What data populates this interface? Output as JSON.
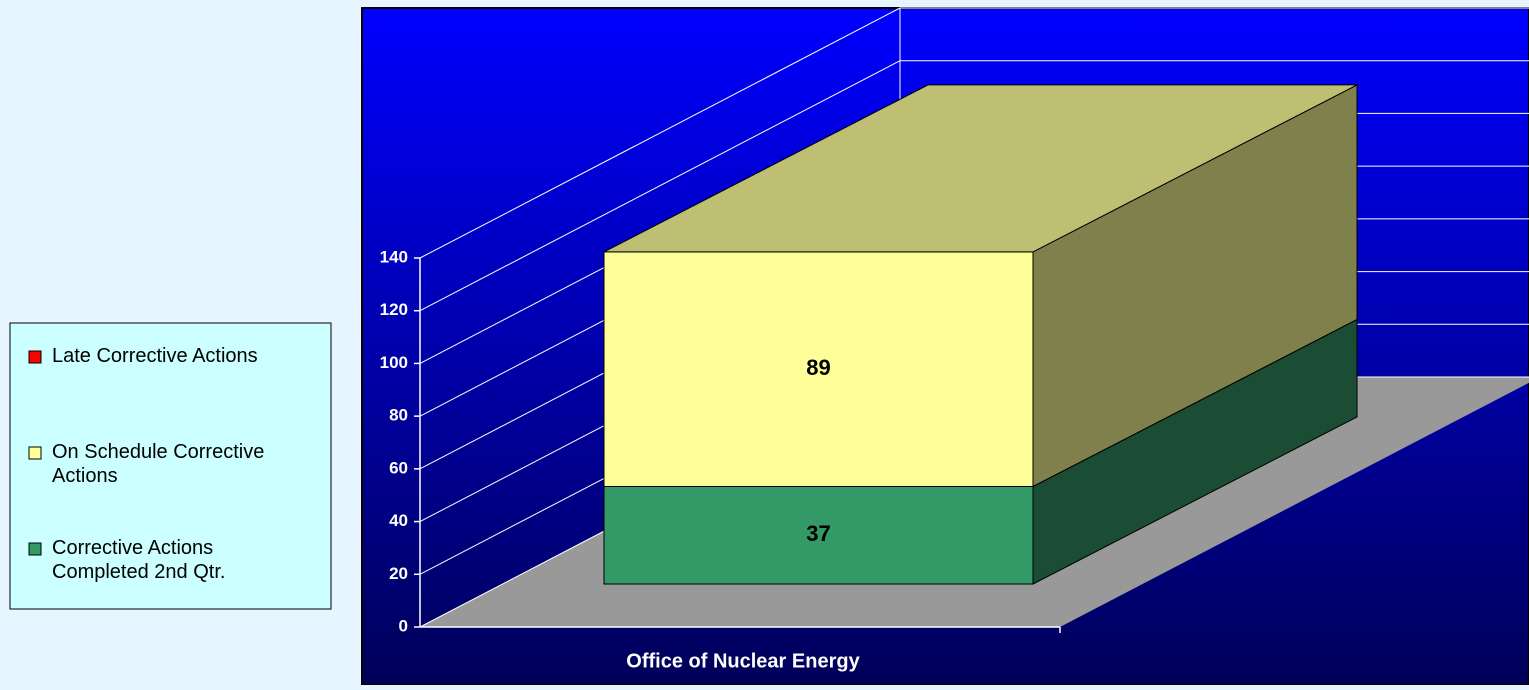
{
  "chart_data": {
    "type": "bar3d_stacked",
    "categories": [
      "Office of Nuclear Energy"
    ],
    "series": [
      {
        "name": "Late Corrective Actions",
        "color": "#ff0000",
        "values": [
          0
        ]
      },
      {
        "name": "On Schedule Corrective Actions",
        "color": "#ffff99",
        "values": [
          89
        ]
      },
      {
        "name": "Corrective Actions Completed 2nd Qtr.",
        "color": "#339966",
        "values": [
          37
        ]
      }
    ],
    "ylim": [
      0,
      140
    ],
    "yticks": [
      0,
      20,
      40,
      60,
      80,
      100,
      120,
      140
    ],
    "grid": true,
    "legend": "left"
  }
}
